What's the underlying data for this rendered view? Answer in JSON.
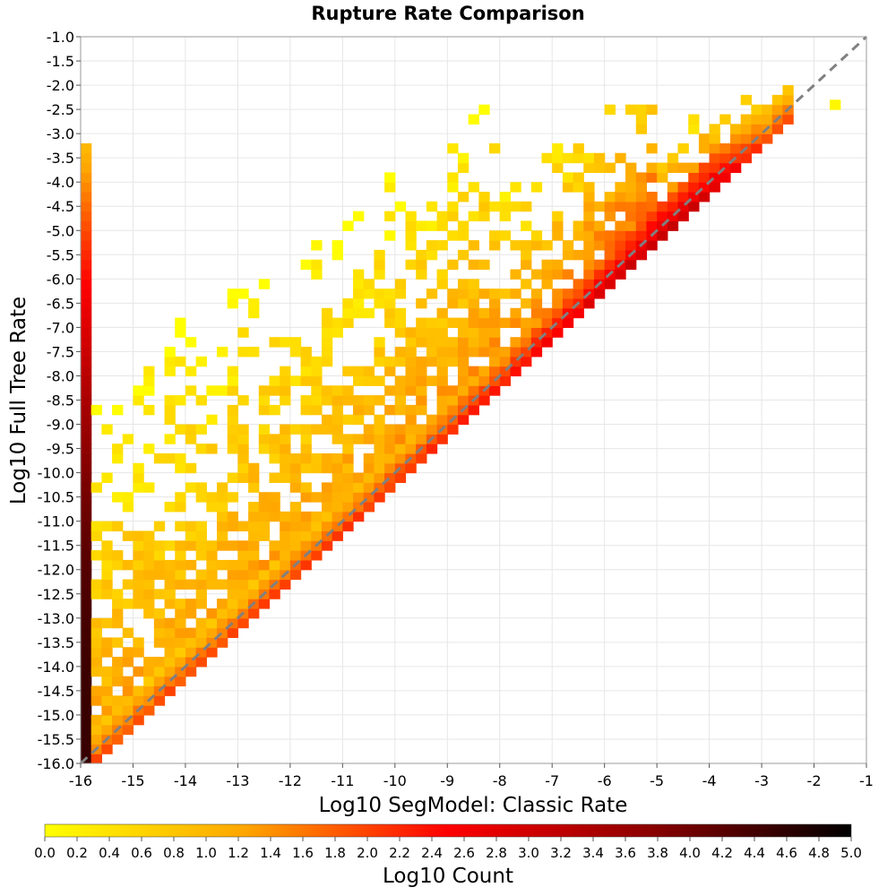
{
  "chart_data": {
    "type": "heatmap",
    "title": "Rupture Rate Comparison",
    "xlabel": "Log10 SegModel: Classic Rate",
    "ylabel": "Log10 Full Tree Rate",
    "xlim": [
      -16,
      -1
    ],
    "ylim": [
      -16,
      -1
    ],
    "x_ticks": [
      -16,
      -15,
      -14,
      -13,
      -12,
      -11,
      -10,
      -9,
      -8,
      -7,
      -6,
      -5,
      -4,
      -3,
      -2,
      -1
    ],
    "y_ticks": [
      -1.0,
      -1.5,
      -2.0,
      -2.5,
      -3.0,
      -3.5,
      -4.0,
      -4.5,
      -5.0,
      -5.5,
      -6.0,
      -6.5,
      -7.0,
      -7.5,
      -8.0,
      -8.5,
      -9.0,
      -9.5,
      -10.0,
      -10.5,
      -11.0,
      -11.5,
      -12.0,
      -12.5,
      -13.0,
      -13.5,
      -14.0,
      -14.5,
      -15.0,
      -15.5,
      -16.0
    ],
    "x_tick_labels": [
      "-16",
      "-15",
      "-14",
      "-13",
      "-12",
      "-11",
      "-10",
      "-9",
      "-8",
      "-7",
      "-6",
      "-5",
      "-4",
      "-3",
      "-2",
      "-1"
    ],
    "y_tick_labels": [
      "-1.0",
      "-1.5",
      "-2.0",
      "-2.5",
      "-3.0",
      "-3.5",
      "-4.0",
      "-4.5",
      "-5.0",
      "-5.5",
      "-6.0",
      "-6.5",
      "-7.0",
      "-7.5",
      "-8.0",
      "-8.5",
      "-9.0",
      "-9.5",
      "-10.0",
      "-10.5",
      "-11.0",
      "-11.5",
      "-12.0",
      "-12.5",
      "-13.0",
      "-13.5",
      "-14.0",
      "-14.5",
      "-15.0",
      "-15.5",
      "-16.0"
    ],
    "bin_size": 0.2,
    "grid": true,
    "reference_line": "y = x (dashed gray)",
    "colorbar": {
      "label": "Log10 Count",
      "range": [
        0.0,
        5.0
      ],
      "ticks": [
        "0.0",
        "0.2",
        "0.4",
        "0.6",
        "0.8",
        "1.0",
        "1.2",
        "1.4",
        "1.6",
        "1.8",
        "2.0",
        "2.2",
        "2.4",
        "2.6",
        "2.8",
        "3.0",
        "3.2",
        "3.4",
        "3.6",
        "3.8",
        "4.0",
        "4.2",
        "4.4",
        "4.6",
        "4.8",
        "5.0"
      ],
      "stops": [
        "#ffff00",
        "#ffa500",
        "#ff0000",
        "#8b0000",
        "#000000"
      ]
    },
    "edge_column": {
      "x": -16,
      "y_range": [
        -16.0,
        -3.2
      ],
      "log10_count_bottom": 4.5,
      "log10_count_top": 1.0
    },
    "diagonal_band": {
      "description": "dense band along/below y = x, from x=-16 to x=-3",
      "log10_count_peak_at_x": [
        [
          -16,
          2.0
        ],
        [
          -14,
          2.0
        ],
        [
          -12,
          2.1
        ],
        [
          -10,
          2.2
        ],
        [
          -8,
          2.4
        ],
        [
          -7,
          2.7
        ],
        [
          -6,
          3.0
        ],
        [
          -5,
          3.2
        ],
        [
          -4,
          3.0
        ],
        [
          -3,
          2.0
        ]
      ]
    },
    "upper_scatter": {
      "description": "sparse low-count cells above the diagonal",
      "log10_count_range": [
        0.0,
        1.4
      ]
    },
    "isolated_cell": {
      "x": -1.7,
      "y": -2.5,
      "log10_count": 0.1
    }
  }
}
